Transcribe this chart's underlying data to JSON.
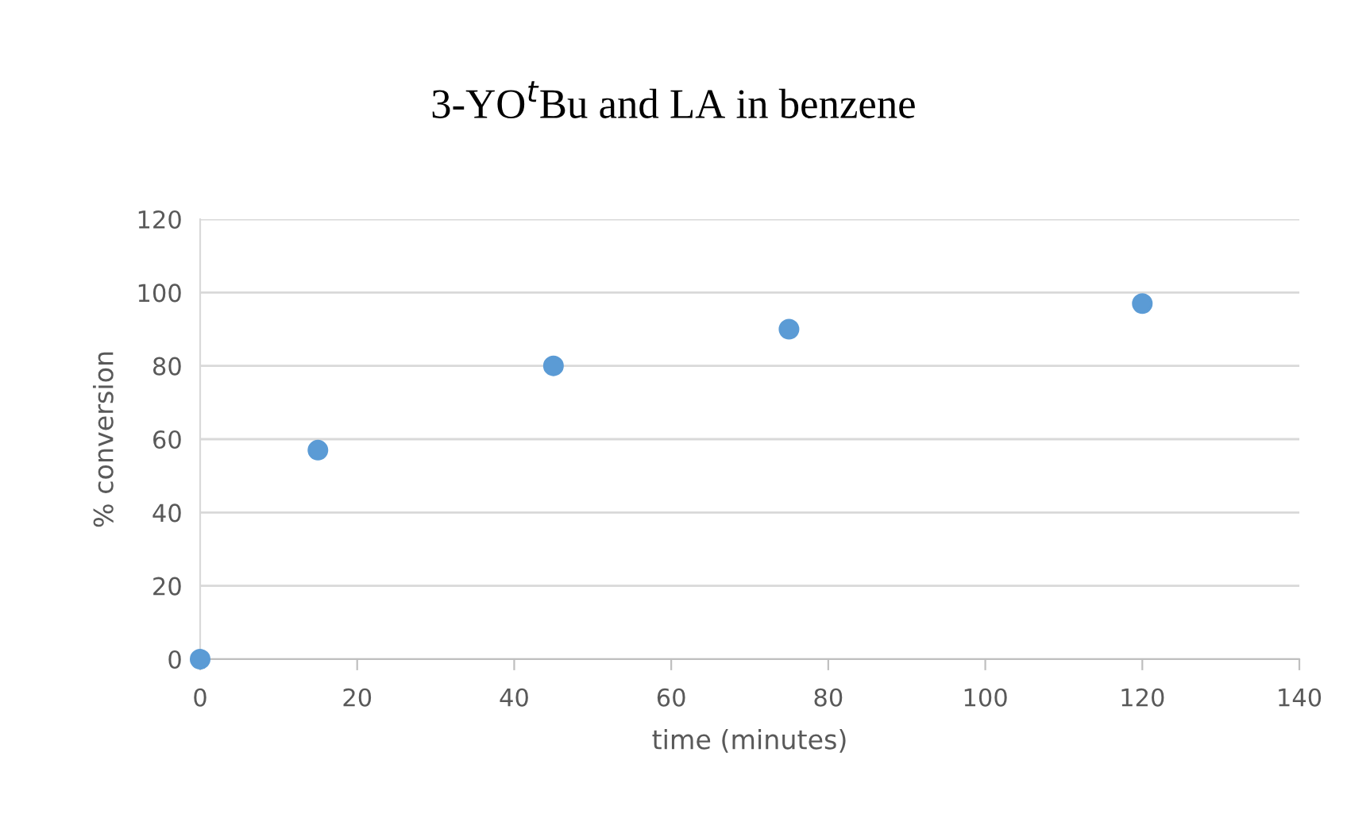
{
  "chart_data": {
    "type": "scatter",
    "title": "3-YO$^{t}$Bu and LA in benzene",
    "xlabel": "time (minutes)",
    "ylabel": "% conversion",
    "x": [
      0,
      15,
      45,
      75,
      120
    ],
    "series": [
      {
        "color": "#5b9bd5",
        "values": [
          0,
          57,
          80,
          90,
          97
        ]
      }
    ],
    "xlim": [
      0,
      140
    ],
    "xticks": [
      0,
      20,
      40,
      60,
      80,
      100,
      120,
      140
    ],
    "ylim": [
      0,
      120
    ],
    "yticks": [
      0,
      20,
      40,
      60,
      80,
      100,
      120
    ],
    "grid": "y",
    "marker": "circle",
    "legend": false
  }
}
